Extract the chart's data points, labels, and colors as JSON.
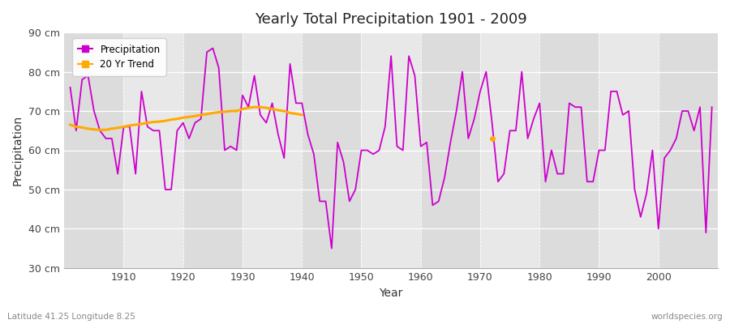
{
  "title": "Yearly Total Precipitation 1901 - 2009",
  "xlabel": "Year",
  "ylabel": "Precipitation",
  "subtitle": "Latitude 41.25 Longitude 8.25",
  "watermark": "worldspecies.org",
  "fig_bg_color": "#ffffff",
  "plot_bg_color": "#e8e8e8",
  "band_colors": [
    "#e0e0e0",
    "#e8e8e8"
  ],
  "precip_color": "#cc00cc",
  "trend_color": "#ffaa00",
  "ylim": [
    30,
    90
  ],
  "yticks": [
    30,
    40,
    50,
    60,
    70,
    80,
    90
  ],
  "xlim_start": 1900,
  "xlim_end": 2010,
  "years": [
    1901,
    1902,
    1903,
    1904,
    1905,
    1906,
    1907,
    1908,
    1909,
    1910,
    1911,
    1912,
    1913,
    1914,
    1915,
    1916,
    1917,
    1918,
    1919,
    1920,
    1921,
    1922,
    1923,
    1924,
    1925,
    1926,
    1927,
    1928,
    1929,
    1930,
    1931,
    1932,
    1933,
    1934,
    1935,
    1936,
    1937,
    1938,
    1939,
    1940,
    1941,
    1942,
    1943,
    1944,
    1945,
    1946,
    1947,
    1948,
    1949,
    1950,
    1951,
    1952,
    1953,
    1954,
    1955,
    1956,
    1957,
    1958,
    1959,
    1960,
    1961,
    1962,
    1963,
    1964,
    1965,
    1966,
    1967,
    1968,
    1969,
    1970,
    1971,
    1972,
    1973,
    1974,
    1975,
    1976,
    1977,
    1978,
    1979,
    1980,
    1981,
    1982,
    1983,
    1984,
    1985,
    1986,
    1987,
    1988,
    1989,
    1990,
    1991,
    1992,
    1993,
    1994,
    1995,
    1996,
    1997,
    1998,
    1999,
    2000,
    2001,
    2002,
    2003,
    2004,
    2005,
    2006,
    2007,
    2008,
    2009
  ],
  "precip": [
    76,
    65,
    78,
    79,
    70,
    65,
    63,
    63,
    54,
    66,
    66,
    54,
    75,
    66,
    65,
    65,
    50,
    50,
    65,
    67,
    63,
    67,
    68,
    85,
    86,
    81,
    60,
    61,
    60,
    74,
    71,
    79,
    69,
    67,
    72,
    64,
    58,
    82,
    72,
    72,
    64,
    59,
    47,
    47,
    35,
    62,
    57,
    47,
    50,
    60,
    60,
    59,
    60,
    66,
    84,
    61,
    60,
    84,
    79,
    61,
    62,
    46,
    47,
    53,
    62,
    70,
    80,
    63,
    68,
    75,
    80,
    67,
    52,
    54,
    65,
    65,
    80,
    63,
    68,
    72,
    52,
    60,
    54,
    54,
    72,
    71,
    71,
    52,
    52,
    60,
    60,
    75,
    75,
    69,
    70,
    50,
    43,
    49,
    60,
    40,
    58,
    60,
    63,
    70,
    70,
    65,
    71,
    39,
    71
  ],
  "trend_years": [
    1901,
    1902,
    1903,
    1904,
    1905,
    1906,
    1907,
    1908,
    1909,
    1910,
    1911,
    1912,
    1913,
    1914,
    1915,
    1916,
    1917,
    1918,
    1919,
    1920,
    1921,
    1922,
    1923,
    1924,
    1925,
    1926,
    1927,
    1928,
    1929,
    1930,
    1931,
    1932,
    1933,
    1934,
    1935,
    1936,
    1937,
    1938,
    1939,
    1940
  ],
  "trend": [
    66.5,
    66.0,
    65.8,
    65.5,
    65.3,
    65.2,
    65.2,
    65.5,
    65.7,
    66.0,
    66.3,
    66.5,
    66.7,
    67.0,
    67.2,
    67.3,
    67.5,
    67.8,
    68.0,
    68.3,
    68.5,
    68.7,
    69.0,
    69.2,
    69.5,
    69.7,
    69.8,
    70.0,
    70.0,
    70.5,
    70.8,
    71.0,
    71.0,
    70.8,
    70.5,
    70.2,
    70.0,
    69.5,
    69.3,
    69.0
  ],
  "trend_dot_year": 1972,
  "trend_dot_value": 63,
  "decade_bands": [
    [
      1900,
      1910,
      "#dcdcdc"
    ],
    [
      1910,
      1920,
      "#e8e8e8"
    ],
    [
      1920,
      1930,
      "#dcdcdc"
    ],
    [
      1930,
      1940,
      "#e8e8e8"
    ],
    [
      1940,
      1950,
      "#dcdcdc"
    ],
    [
      1950,
      1960,
      "#e8e8e8"
    ],
    [
      1960,
      1970,
      "#dcdcdc"
    ],
    [
      1970,
      1980,
      "#e8e8e8"
    ],
    [
      1980,
      1990,
      "#dcdcdc"
    ],
    [
      1990,
      2000,
      "#e8e8e8"
    ],
    [
      2000,
      2010,
      "#dcdcdc"
    ]
  ]
}
